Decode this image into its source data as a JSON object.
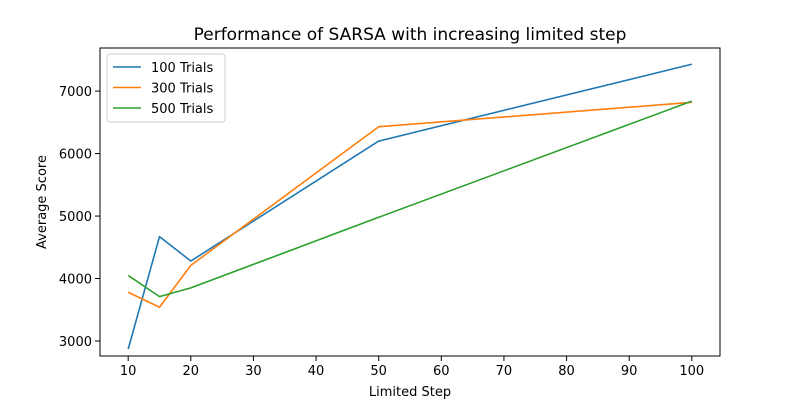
{
  "chart_data": {
    "type": "line",
    "title": "Performance of SARSA with increasing limited step",
    "xlabel": "Limited Step",
    "ylabel": "Average Score",
    "x": [
      10,
      15,
      20,
      50,
      100
    ],
    "xlim": [
      5.5,
      104.5
    ],
    "ylim": [
      2760,
      7690
    ],
    "xticks": [
      "10",
      "20",
      "30",
      "40",
      "50",
      "60",
      "70",
      "80",
      "90",
      "100"
    ],
    "yticks": [
      "3000",
      "4000",
      "5000",
      "6000",
      "7000"
    ],
    "grid": false,
    "legend": "top-left",
    "series": [
      {
        "name": "100 Trials",
        "color": "#1f77b4",
        "values": [
          2870,
          4670,
          4280,
          6200,
          7430
        ]
      },
      {
        "name": "300 Trials",
        "color": "#ff7f0e",
        "values": [
          3780,
          3540,
          4210,
          6430,
          6820
        ]
      },
      {
        "name": "500 Trials",
        "color": "#2ca02c",
        "values": [
          4050,
          3710,
          3850,
          4980,
          6840
        ]
      }
    ]
  }
}
